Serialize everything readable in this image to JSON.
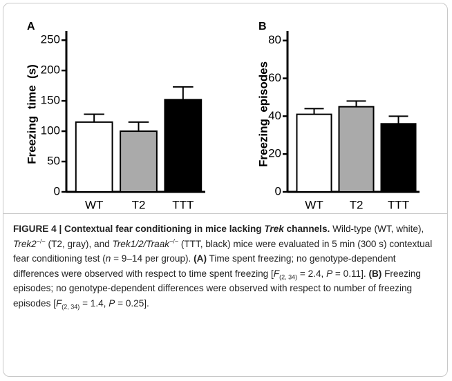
{
  "chart_data": [
    {
      "type": "bar",
      "panel": "A",
      "ylabel": "Freezing  time  (s)",
      "categories": [
        "WT",
        "T2",
        "TTT"
      ],
      "values": [
        115,
        100,
        152
      ],
      "errors": [
        13,
        15,
        21
      ],
      "colors": [
        "#ffffff",
        "#aaaaaa",
        "#000000"
      ],
      "ylim": [
        0,
        265
      ],
      "yticks": [
        0,
        50,
        100,
        150,
        200,
        250
      ]
    },
    {
      "type": "bar",
      "panel": "B",
      "ylabel": "Freezing  episodes",
      "categories": [
        "WT",
        "T2",
        "TTT"
      ],
      "values": [
        41,
        45,
        36
      ],
      "errors": [
        3,
        3,
        4
      ],
      "colors": [
        "#ffffff",
        "#aaaaaa",
        "#000000"
      ],
      "ylim": [
        0,
        85
      ],
      "yticks": [
        0,
        20,
        40,
        60,
        80
      ]
    }
  ],
  "caption": {
    "runs": [
      {
        "text": "FIGURE 4 | Contextual fear conditioning in mice lacking ",
        "style": "b"
      },
      {
        "text": "Trek",
        "style": "bi"
      },
      {
        "text": " channels.",
        "style": "b"
      },
      {
        "text": " Wild-type (WT, white), ",
        "style": "n"
      },
      {
        "text": "Trek2",
        "style": "i"
      },
      {
        "text": "−/−",
        "style": "sup"
      },
      {
        "text": " (T2, gray), and ",
        "style": "n"
      },
      {
        "text": "Trek1/2/Traak",
        "style": "i"
      },
      {
        "text": "−/−",
        "style": "sup"
      },
      {
        "text": " (TTT, black) mice were evaluated in 5 min (300 s) contextual fear conditioning test (",
        "style": "n"
      },
      {
        "text": "n",
        "style": "i"
      },
      {
        "text": " = 9–14 per group). ",
        "style": "n"
      },
      {
        "text": "(A)",
        "style": "b"
      },
      {
        "text": " Time spent freezing; no genotype-dependent differences were observed with respect to time spent freezing [",
        "style": "n"
      },
      {
        "text": "F",
        "style": "i"
      },
      {
        "text": "(2, 34)",
        "style": "sub"
      },
      {
        "text": " = 2.4, ",
        "style": "n"
      },
      {
        "text": "P",
        "style": "i"
      },
      {
        "text": " = 0.11]. ",
        "style": "n"
      },
      {
        "text": "(B)",
        "style": "b"
      },
      {
        "text": " Freezing episodes; no genotype-dependent differences were observed with respect to number of freezing episodes [",
        "style": "n"
      },
      {
        "text": "F",
        "style": "i"
      },
      {
        "text": "(2, 34)",
        "style": "sub"
      },
      {
        "text": " = 1.4, ",
        "style": "n"
      },
      {
        "text": "P",
        "style": "i"
      },
      {
        "text": " = 0.25].",
        "style": "n"
      }
    ]
  }
}
